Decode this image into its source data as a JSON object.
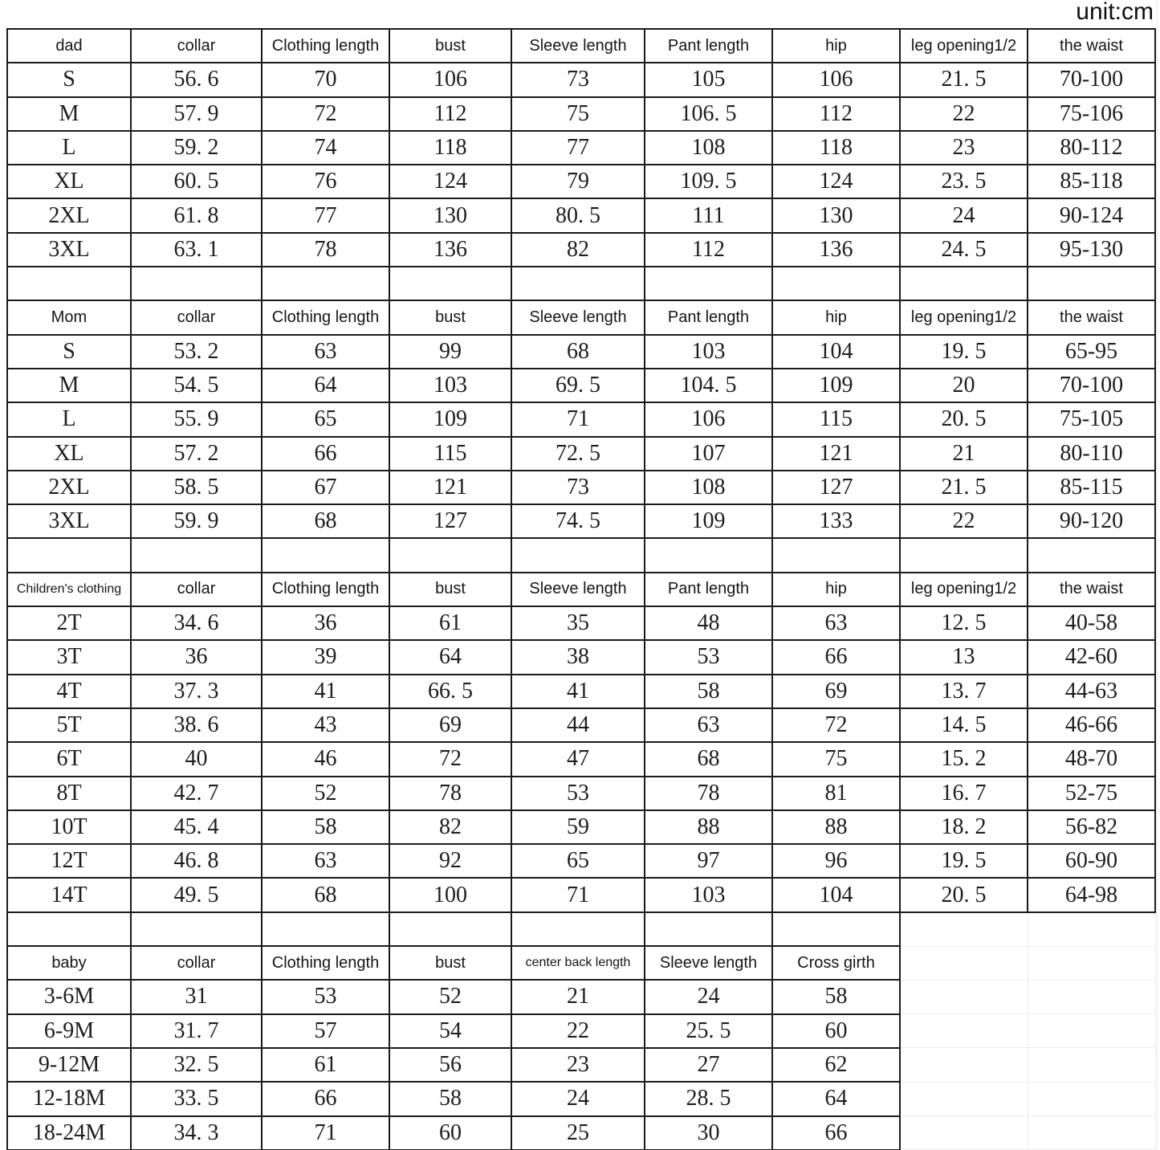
{
  "unit_label": "unit:cm",
  "colors": {
    "border": "#1a1a1a",
    "faint_grid": "#ececec",
    "text": "#1e1e1e",
    "background": "#ffffff"
  },
  "total_columns": 9,
  "sections": [
    {
      "id": "dad",
      "header": [
        "dad",
        "collar",
        "Clothing length",
        "bust",
        "Sleeve length",
        "Pant length",
        "hip",
        "leg opening1/2",
        "the waist"
      ],
      "rows": [
        [
          "S",
          "56. 6",
          "70",
          "106",
          "73",
          "105",
          "106",
          "21. 5",
          "70-100"
        ],
        [
          "M",
          "57. 9",
          "72",
          "112",
          "75",
          "106. 5",
          "112",
          "22",
          "75-106"
        ],
        [
          "L",
          "59. 2",
          "74",
          "118",
          "77",
          "108",
          "118",
          "23",
          "80-112"
        ],
        [
          "XL",
          "60. 5",
          "76",
          "124",
          "79",
          "109. 5",
          "124",
          "23. 5",
          "85-118"
        ],
        [
          "2XL",
          "61. 8",
          "77",
          "130",
          "80. 5",
          "111",
          "130",
          "24",
          "90-124"
        ],
        [
          "3XL",
          "63. 1",
          "78",
          "136",
          "82",
          "112",
          "136",
          "24. 5",
          "95-130"
        ]
      ],
      "spacer_after_columns": 9
    },
    {
      "id": "mom",
      "header": [
        "Mom",
        "collar",
        "Clothing length",
        "bust",
        "Sleeve length",
        "Pant length",
        "hip",
        "leg opening1/2",
        "the waist"
      ],
      "rows": [
        [
          "S",
          "53. 2",
          "63",
          "99",
          "68",
          "103",
          "104",
          "19. 5",
          "65-95"
        ],
        [
          "M",
          "54. 5",
          "64",
          "103",
          "69. 5",
          "104. 5",
          "109",
          "20",
          "70-100"
        ],
        [
          "L",
          "55. 9",
          "65",
          "109",
          "71",
          "106",
          "115",
          "20. 5",
          "75-105"
        ],
        [
          "XL",
          "57. 2",
          "66",
          "115",
          "72. 5",
          "107",
          "121",
          "21",
          "80-110"
        ],
        [
          "2XL",
          "58. 5",
          "67",
          "121",
          "73",
          "108",
          "127",
          "21. 5",
          "85-115"
        ],
        [
          "3XL",
          "59. 9",
          "68",
          "127",
          "74. 5",
          "109",
          "133",
          "22",
          "90-120"
        ]
      ],
      "spacer_after_columns": 9
    },
    {
      "id": "children",
      "header": [
        "Children's clothing",
        "collar",
        "Clothing length",
        "bust",
        "Sleeve length",
        "Pant length",
        "hip",
        "leg opening1/2",
        "the waist"
      ],
      "rows": [
        [
          "2T",
          "34. 6",
          "36",
          "61",
          "35",
          "48",
          "63",
          "12. 5",
          "40-58"
        ],
        [
          "3T",
          "36",
          "39",
          "64",
          "38",
          "53",
          "66",
          "13",
          "42-60"
        ],
        [
          "4T",
          "37. 3",
          "41",
          "66. 5",
          "41",
          "58",
          "69",
          "13. 7",
          "44-63"
        ],
        [
          "5T",
          "38. 6",
          "43",
          "69",
          "44",
          "63",
          "72",
          "14. 5",
          "46-66"
        ],
        [
          "6T",
          "40",
          "46",
          "72",
          "47",
          "68",
          "75",
          "15. 2",
          "48-70"
        ],
        [
          "8T",
          "42. 7",
          "52",
          "78",
          "53",
          "78",
          "81",
          "16. 7",
          "52-75"
        ],
        [
          "10T",
          "45. 4",
          "58",
          "82",
          "59",
          "88",
          "88",
          "18. 2",
          "56-82"
        ],
        [
          "12T",
          "46. 8",
          "63",
          "92",
          "65",
          "97",
          "96",
          "19. 5",
          "60-90"
        ],
        [
          "14T",
          "49. 5",
          "68",
          "100",
          "71",
          "103",
          "104",
          "20. 5",
          "64-98"
        ]
      ],
      "spacer_after_columns": 7
    },
    {
      "id": "baby",
      "header": [
        "baby",
        "collar",
        "Clothing length",
        "bust",
        "center back length",
        "Sleeve length",
        "Cross girth"
      ],
      "rows": [
        [
          "3-6M",
          "31",
          "53",
          "52",
          "21",
          "24",
          "58"
        ],
        [
          "6-9M",
          "31. 7",
          "57",
          "54",
          "22",
          "25. 5",
          "60"
        ],
        [
          "9-12M",
          "32. 5",
          "61",
          "56",
          "23",
          "27",
          "62"
        ],
        [
          "12-18M",
          "33. 5",
          "66",
          "58",
          "24",
          "28. 5",
          "64"
        ],
        [
          "18-24M",
          "34. 3",
          "71",
          "60",
          "25",
          "30",
          "66"
        ]
      ],
      "spacer_after_columns": null
    }
  ]
}
